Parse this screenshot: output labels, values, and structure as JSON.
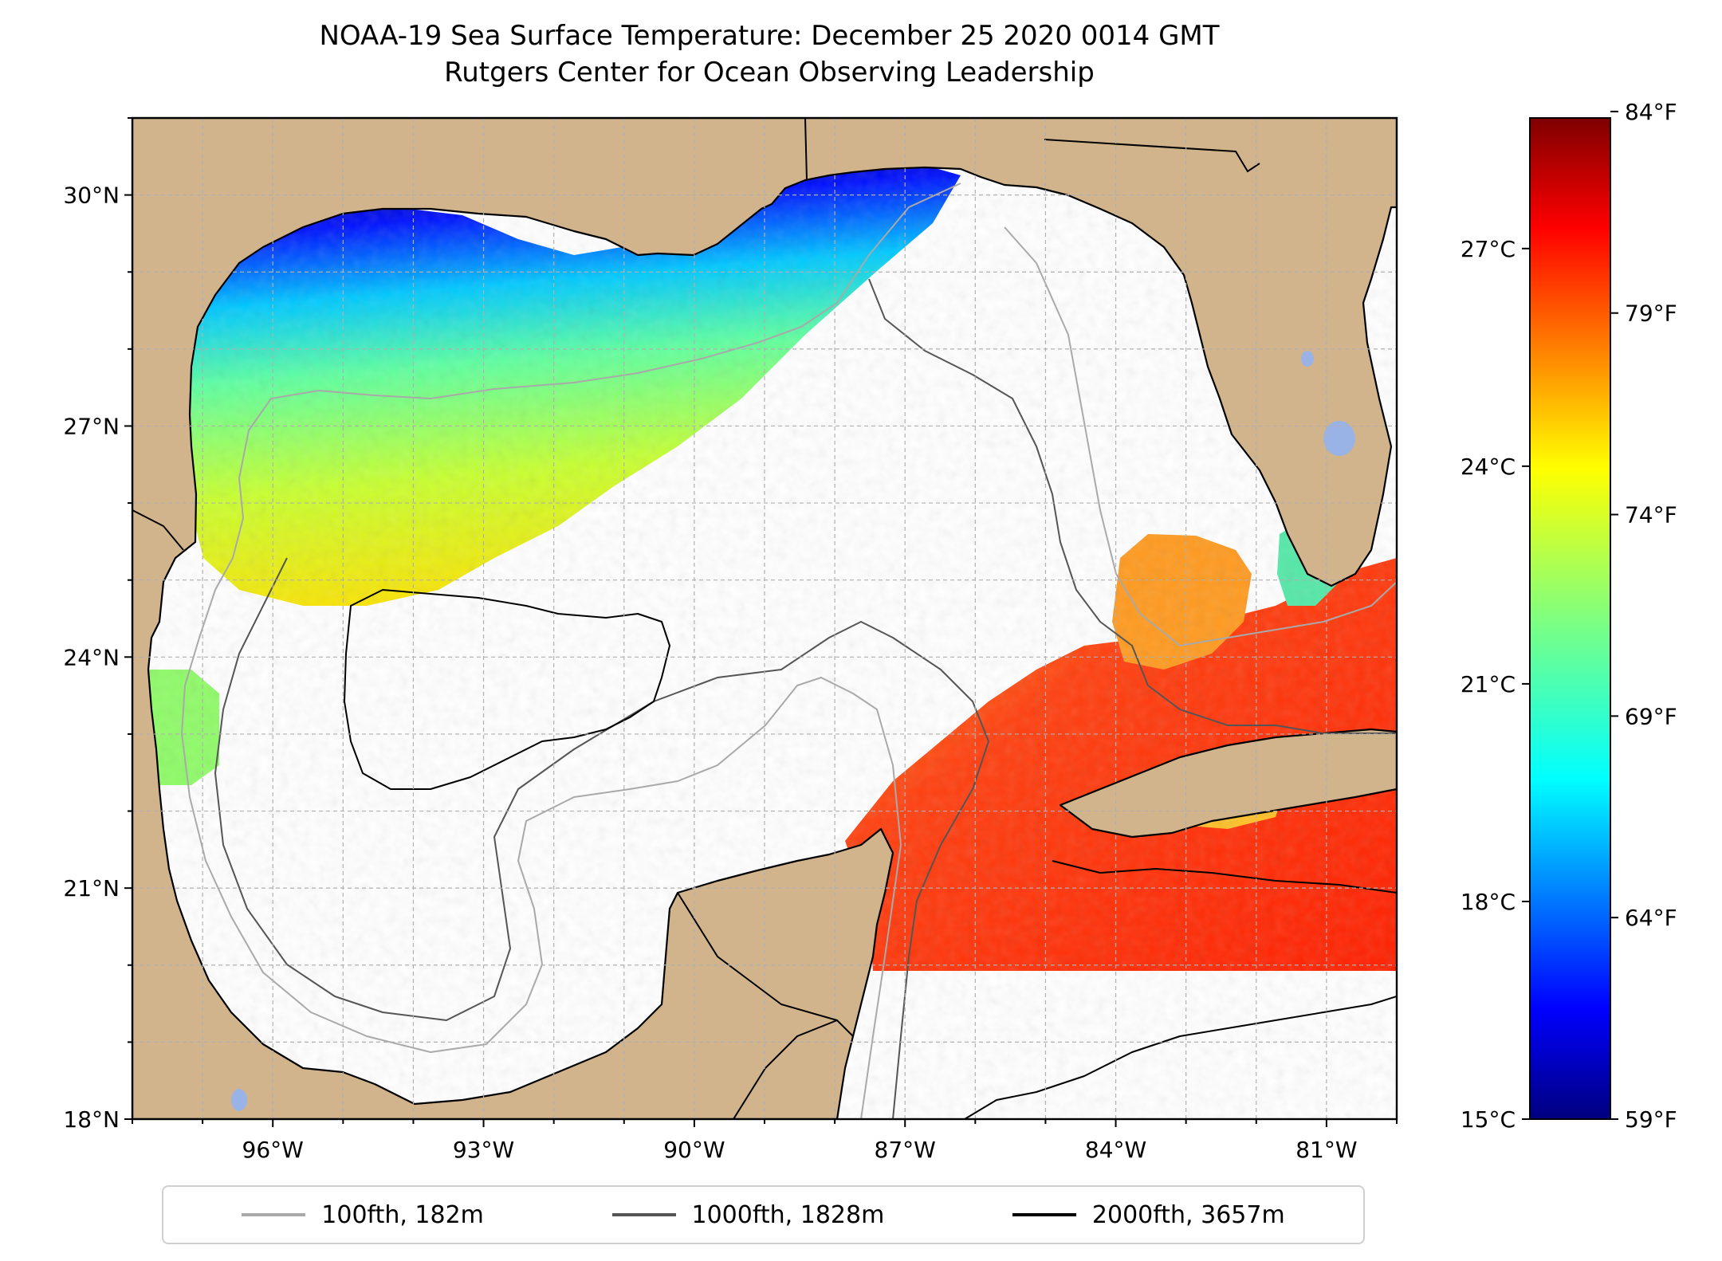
{
  "title": {
    "line1": "NOAA-19 Sea Surface Temperature: December 25 2020 0014 GMT",
    "line2": "Rutgers Center for Ocean Observing Leadership"
  },
  "map": {
    "lon_range": [
      -98.0,
      -80.0
    ],
    "lat_range": [
      18.0,
      31.0
    ],
    "lon_ticks": [
      {
        "value": -96,
        "label": "96°W"
      },
      {
        "value": -93,
        "label": "93°W"
      },
      {
        "value": -90,
        "label": "90°W"
      },
      {
        "value": -87,
        "label": "87°W"
      },
      {
        "value": -84,
        "label": "84°W"
      },
      {
        "value": -81,
        "label": "81°W"
      }
    ],
    "lat_ticks": [
      {
        "value": 18,
        "label": "18°N"
      },
      {
        "value": 21,
        "label": "21°N"
      },
      {
        "value": 24,
        "label": "24°N"
      },
      {
        "value": 27,
        "label": "27°N"
      },
      {
        "value": 30,
        "label": "30°N"
      }
    ],
    "gridlines": true,
    "land_color": "#d2b48c",
    "water_color": "#ffffff"
  },
  "colorbar": {
    "colormap": "jet",
    "range_celsius": [
      15,
      28.8
    ],
    "celsius_ticks": [
      {
        "value": 15,
        "label": "15°C"
      },
      {
        "value": 18,
        "label": "18°C"
      },
      {
        "value": 21,
        "label": "21°C"
      },
      {
        "value": 24,
        "label": "24°C"
      },
      {
        "value": 27,
        "label": "27°C"
      }
    ],
    "fahrenheit_ticks": [
      {
        "value": 59,
        "label": "59°F"
      },
      {
        "value": 64,
        "label": "64°F"
      },
      {
        "value": 69,
        "label": "69°F"
      },
      {
        "value": 74,
        "label": "74°F"
      },
      {
        "value": 79,
        "label": "79°F"
      },
      {
        "value": 84,
        "label": "84°F"
      }
    ]
  },
  "legend": {
    "entries": [
      {
        "label": "100fth, 182m",
        "color": "#a9a9a9"
      },
      {
        "label": "1000fth, 1828m",
        "color": "#555555"
      },
      {
        "label": "2000fth, 3657m",
        "color": "#000000"
      }
    ]
  }
}
